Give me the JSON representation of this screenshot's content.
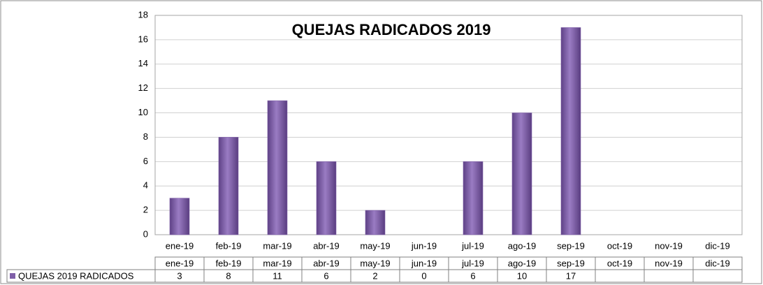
{
  "chart_data": {
    "type": "bar",
    "title": "QUEJAS RADICADOS 2019",
    "categories": [
      "ene-19",
      "feb-19",
      "mar-19",
      "abr-19",
      "may-19",
      "jun-19",
      "jul-19",
      "ago-19",
      "sep-19",
      "oct-19",
      "nov-19",
      "dic-19"
    ],
    "series": [
      {
        "name": "QUEJAS 2019 RADICADOS",
        "color": "#7f5fa8",
        "values": [
          3,
          8,
          11,
          6,
          2,
          0,
          6,
          10,
          17,
          null,
          null,
          null
        ]
      }
    ],
    "ylim": [
      0,
      18
    ],
    "yticks": [
      0,
      2,
      4,
      6,
      8,
      10,
      12,
      14,
      16,
      18
    ],
    "grid": true,
    "data_table": true
  }
}
